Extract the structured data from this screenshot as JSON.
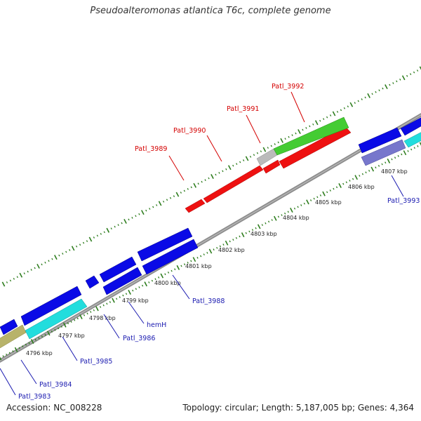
{
  "title": "Pseudoalteromonas atlantica T6c, complete genome",
  "footer": {
    "accession": "Accession: NC_008228",
    "summary": "Topology: circular; Length: 5,187,005 bp; Genes: 4,364"
  },
  "colors": {
    "backbone": "#8c8c8c",
    "tick_green": "#2e7d1e",
    "label_red": "#d40000",
    "label_blue": "#1a1ab0"
  },
  "kbp_labels": [
    "4796 kbp",
    "4797 kbp",
    "4798 kbp",
    "4799 kbp",
    "4800 kbp",
    "4801 kbp",
    "4802 kbp",
    "4803 kbp",
    "4804 kbp",
    "4805 kbp",
    "4806 kbp",
    "4807 kbp"
  ],
  "genes_forward": [
    {
      "label": "Patl_3989",
      "color": "#ee1111"
    },
    {
      "label": "Patl_3990",
      "color": "#ee1111"
    },
    {
      "label": "Patl_3991",
      "color": "#ee1111"
    },
    {
      "label": "Patl_3992",
      "color": "#44cc33"
    }
  ],
  "genes_reverse": [
    {
      "label": "Patl_3983",
      "color": "#b8b36a"
    },
    {
      "label": "Patl_3984",
      "color": "#0a0ae6"
    },
    {
      "label": "Patl_3985",
      "color": "#22dddd"
    },
    {
      "label": "Patl_3986",
      "color": "#0a0ae6"
    },
    {
      "label": "hemH",
      "color": "#0a0ae6"
    },
    {
      "label": "Patl_3988",
      "color": "#0a0ae6"
    },
    {
      "label": "Patl_3993",
      "color": "#7777cc"
    }
  ]
}
